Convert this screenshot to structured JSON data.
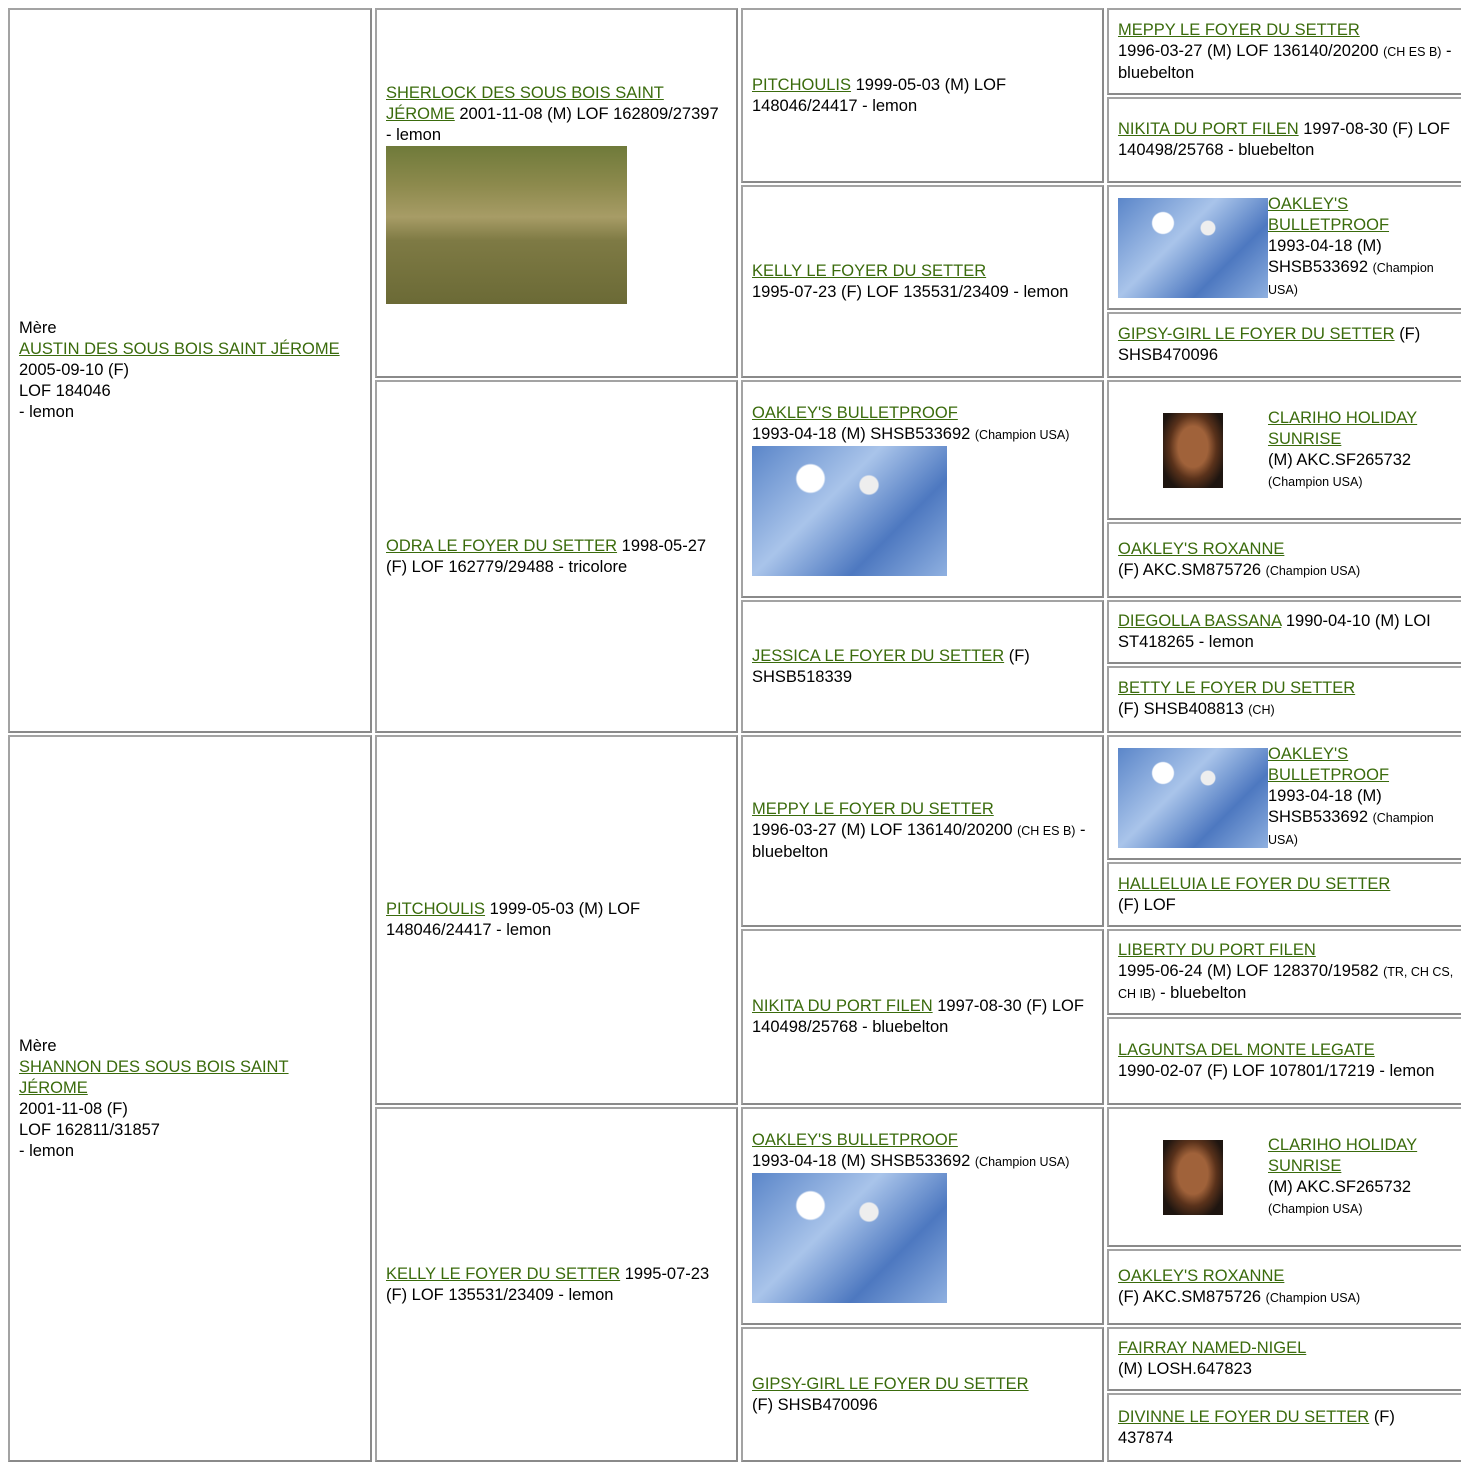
{
  "col1": [
    {
      "label": "Mère",
      "name": "AUSTIN DES SOUS BOIS SAINT JÉROME",
      "lines": [
        "2005-09-10 (F)",
        "LOF 184046",
        "- lemon"
      ]
    },
    {
      "label": "Mère",
      "name": "SHANNON DES SOUS BOIS SAINT JÉROME",
      "lines": [
        "2001-11-08 (F)",
        "LOF 162811/31857",
        "- lemon"
      ]
    }
  ],
  "col2": [
    {
      "name": "SHERLOCK DES SOUS BOIS SAINT JÉROME",
      "info": "2001-11-08 (M) LOF 162809/27397 - lemon"
    },
    {
      "name": "ODRA LE FOYER DU SETTER",
      "info": "1998-05-27 (F) LOF 162779/29488 - tricolore"
    },
    {
      "name": "PITCHOULIS",
      "info": "1999-05-03 (M) LOF 148046/24417 - lemon"
    },
    {
      "name": "KELLY LE FOYER DU SETTER",
      "info": "1995-07-23 (F) LOF 135531/23409 - lemon"
    }
  ],
  "col3": [
    {
      "name": "PITCHOULIS",
      "info": "1999-05-03 (M) LOF 148046/24417 - lemon"
    },
    {
      "name": "KELLY LE FOYER DU SETTER",
      "info": "1995-07-23 (F) LOF 135531/23409 - lemon"
    },
    {
      "name": "OAKLEY'S BULLETPROOF",
      "info": "1993-04-18 (M) SHSB533692",
      "note": "(Champion USA)"
    },
    {
      "name": "JESSICA LE FOYER DU SETTER",
      "info": "(F) SHSB518339"
    },
    {
      "name": "MEPPY LE FOYER DU SETTER",
      "info": "1996-03-27 (M) LOF 136140/20200",
      "note": "(CH ES B)",
      "tail": "- bluebelton"
    },
    {
      "name": "NIKITA DU PORT FILEN",
      "info": "1997-08-30 (F) LOF 140498/25768 - bluebelton"
    },
    {
      "name": "OAKLEY'S BULLETPROOF",
      "info": "1993-04-18 (M) SHSB533692",
      "note": "(Champion USA)"
    },
    {
      "name": "GIPSY-GIRL LE FOYER DU SETTER",
      "info": "(F) SHSB470096"
    }
  ],
  "col4": [
    {
      "name": "MEPPY LE FOYER DU SETTER",
      "info": "1996-03-27 (M) LOF 136140/20200",
      "note": "(CH ES B)",
      "tail": "- bluebelton"
    },
    {
      "name": "NIKITA DU PORT FILEN",
      "info": "1997-08-30 (F) LOF 140498/25768 - bluebelton"
    },
    {
      "name": "OAKLEY'S BULLETPROOF",
      "info": "1993-04-18 (M) SHSB533692",
      "note": "(Champion USA)"
    },
    {
      "name": "GIPSY-GIRL LE FOYER DU SETTER",
      "info": "(F) SHSB470096"
    },
    {
      "name": "CLARIHO HOLIDAY SUNRISE",
      "info": "(M) AKC.SF265732",
      "note": "(Champion USA)"
    },
    {
      "name": "OAKLEY'S ROXANNE",
      "info": "(F) AKC.SM875726",
      "note": "(Champion USA)"
    },
    {
      "name": "DIEGOLLA BASSANA",
      "info": "1990-04-10 (M) LOI ST418265 - lemon"
    },
    {
      "name": "BETTY LE FOYER DU SETTER",
      "info": "(F) SHSB408813",
      "note": "(CH)"
    },
    {
      "name": "OAKLEY'S BULLETPROOF",
      "info": "1993-04-18 (M) SHSB533692",
      "note": "(Champion USA)"
    },
    {
      "name": "HALLELUIA LE FOYER DU SETTER",
      "info": "(F) LOF"
    },
    {
      "name": "LIBERTY DU PORT FILEN",
      "info": "1995-06-24 (M) LOF 128370/19582",
      "note": "(TR, CH CS, CH IB)",
      "tail": "- bluebelton"
    },
    {
      "name": "LAGUNTSA DEL MONTE LEGATE",
      "info": "1990-02-07 (F) LOF 107801/17219 - lemon"
    },
    {
      "name": "CLARIHO HOLIDAY SUNRISE",
      "info": "(M) AKC.SF265732",
      "note": "(Champion USA)"
    },
    {
      "name": "OAKLEY'S ROXANNE",
      "info": "(F) AKC.SM875726",
      "note": "(Champion USA)"
    },
    {
      "name": "FAIRRAY NAMED-NIGEL",
      "info": "(M) LOSH.647823"
    },
    {
      "name": "DIVINNE LE FOYER DU SETTER",
      "info": "(F) 437874"
    }
  ]
}
